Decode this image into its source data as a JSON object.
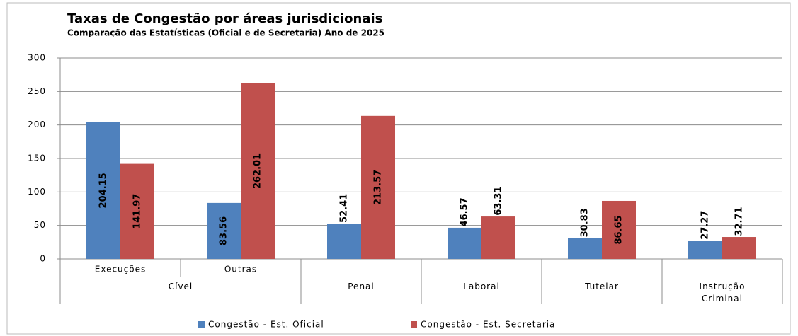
{
  "chart_data": {
    "type": "bar",
    "title": "Taxas de Congestão por áreas jurisdicionais",
    "subtitle": "Comparação das Estatísticas (Oficial  e de Secretaria) Ano de 2025",
    "groups": [
      {
        "label": "Cível",
        "categories": [
          "Execuções",
          "Outras"
        ]
      },
      {
        "label": "Penal"
      },
      {
        "label": "Laboral"
      },
      {
        "label": "Tutelar"
      },
      {
        "label": "Instrução Criminal"
      }
    ],
    "series": [
      {
        "name": "Congestão - Est. Oficial",
        "color": "#4f81bd",
        "values": [
          204.15,
          83.56,
          52.41,
          46.57,
          30.83,
          27.27
        ]
      },
      {
        "name": "Congestão - Est. Secretaria",
        "color": "#c0504d",
        "values": [
          141.97,
          262.01,
          213.57,
          63.31,
          86.65,
          32.71
        ]
      }
    ],
    "ylim": [
      0,
      300
    ],
    "yticks": [
      0,
      50,
      100,
      150,
      200,
      250,
      300
    ],
    "grid": true,
    "legend": "bottom"
  }
}
